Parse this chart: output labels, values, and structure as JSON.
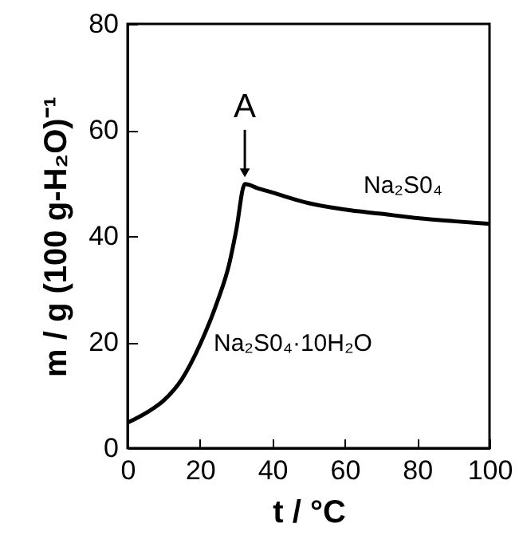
{
  "chart_data": {
    "type": "line",
    "xlabel": "t / °C",
    "ylabel": "m / g (100 g-H₂O)⁻¹",
    "x": [
      0,
      5,
      10,
      15,
      20,
      25,
      28,
      30,
      32.4,
      36,
      40,
      50,
      60,
      70,
      80,
      90,
      100
    ],
    "series": [
      {
        "color": "#000000",
        "values": [
          4.8,
          6.6,
          9,
          13,
          19.5,
          28,
          34.5,
          41,
          49.8,
          49,
          48.2,
          46.2,
          45,
          44.2,
          43.4,
          42.8,
          42.3
        ]
      }
    ],
    "xlim": [
      0,
      100
    ],
    "xticks": [
      0,
      20,
      40,
      60,
      80,
      100
    ],
    "ylim": [
      0,
      80
    ],
    "yticks": [
      0,
      20,
      40,
      60,
      80
    ],
    "annotations": [
      {
        "text": "A",
        "x": 32.4,
        "y": 49.8
      },
      "Na₂S0₄",
      "Na₂S0₄·10H₂O"
    ],
    "grid": false,
    "marker": "none",
    "line_style": "solid"
  }
}
